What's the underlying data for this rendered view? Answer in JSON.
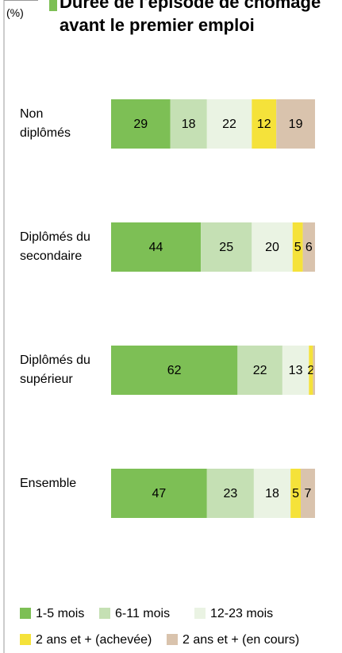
{
  "chart_data": {
    "type": "stacked-bar-horizontal",
    "title": "Durée de l'épisode de chômage avant le premier emploi",
    "unit": "(%)",
    "categories": [
      "Non\ndiplômés",
      "Diplômés du\nsecondaire",
      "Diplômés du\nsupérieur",
      "Ensemble"
    ],
    "xlim": [
      0,
      100
    ],
    "series": [
      {
        "name": "1-5 mois",
        "color": "#7dbf55",
        "values": [
          29,
          44,
          62,
          47
        ]
      },
      {
        "name": "6-11 mois",
        "color": "#c5e0b4",
        "values": [
          18,
          25,
          22,
          23
        ]
      },
      {
        "name": "12-23 mois",
        "color": "#eaf3e3",
        "values": [
          22,
          20,
          13,
          18
        ]
      },
      {
        "name": "2 ans et + (achevée)",
        "color": "#f5e23a",
        "values": [
          12,
          5,
          2,
          5
        ]
      },
      {
        "name": "2 ans et + (en cours)",
        "color": "#d9c3ad",
        "values": [
          19,
          6,
          1,
          7
        ],
        "value_labels": [
          "19",
          "6",
          null,
          "7"
        ]
      }
    ]
  }
}
